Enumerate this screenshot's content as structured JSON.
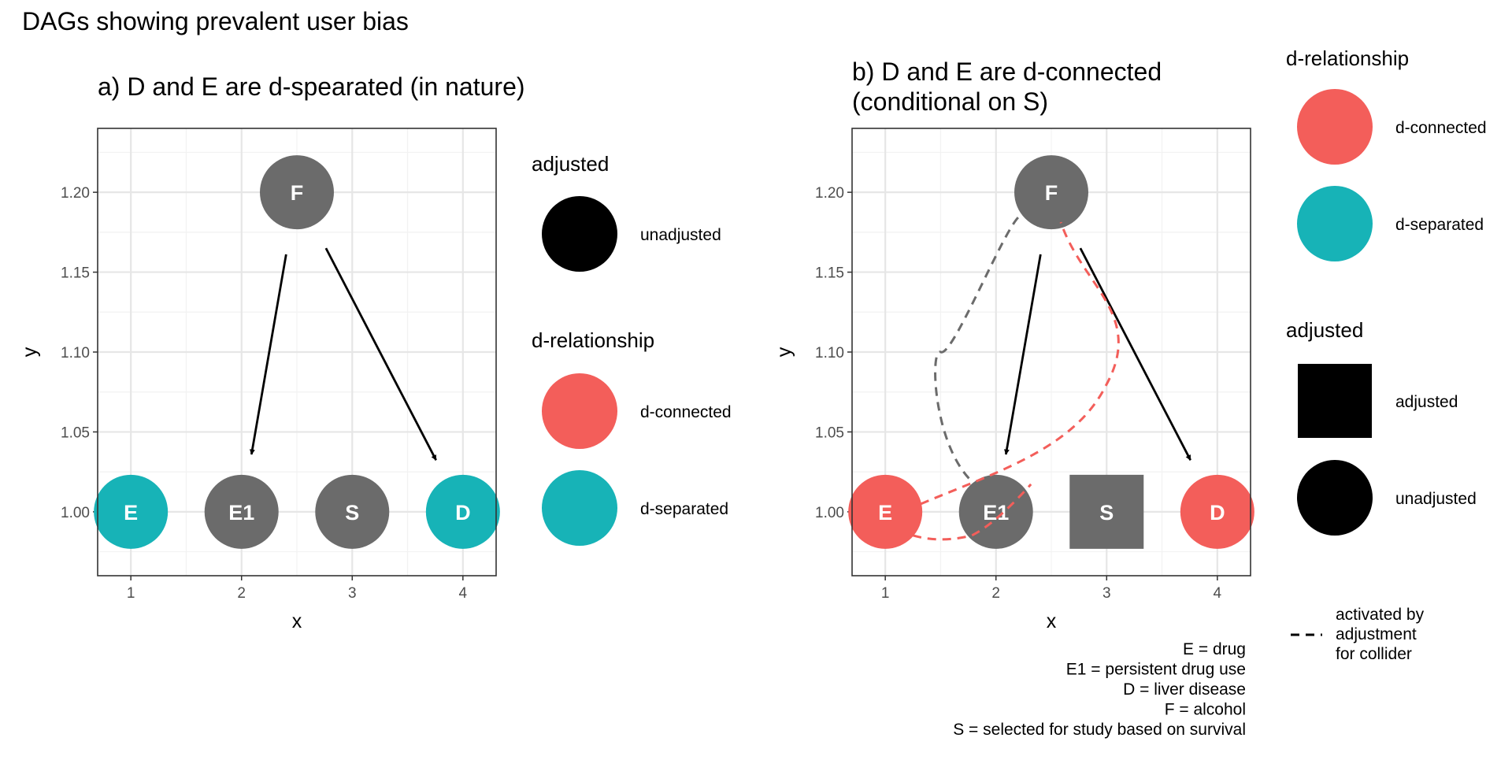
{
  "figure": {
    "title": "DAGs showing prevalent user bias"
  },
  "colors": {
    "connected": "#F35E5A",
    "separated": "#17B3B7",
    "neutral": "#6B6B6B",
    "edge": "#000000",
    "grid_major": "#E6E6E6",
    "grid_minor": "#F2F2F2"
  },
  "chart_data": [
    {
      "type": "dag",
      "title": "a) D and E are d-spearated (in nature)",
      "xlabel": "x",
      "ylabel": "y",
      "xlim": [
        0.7,
        4.3
      ],
      "ylim": [
        0.96,
        1.24
      ],
      "xticks": [
        "1",
        "2",
        "3",
        "4"
      ],
      "yticks": [
        "1.00",
        "1.05",
        "1.10",
        "1.15",
        "1.20"
      ],
      "nodes": [
        {
          "name": "F",
          "x": 2.5,
          "y": 1.2,
          "shape": "circle",
          "status": "neutral"
        },
        {
          "name": "E",
          "x": 1,
          "y": 1.0,
          "shape": "circle",
          "status": "separated"
        },
        {
          "name": "E1",
          "x": 2,
          "y": 1.0,
          "shape": "circle",
          "status": "neutral"
        },
        {
          "name": "S",
          "x": 3,
          "y": 1.0,
          "shape": "circle",
          "status": "neutral"
        },
        {
          "name": "D",
          "x": 4,
          "y": 1.0,
          "shape": "circle",
          "status": "separated"
        }
      ],
      "edges": [
        {
          "from": "F",
          "to": "E1"
        },
        {
          "from": "F",
          "to": "D"
        }
      ],
      "collider_paths": []
    },
    {
      "type": "dag",
      "title": "b) D and E are d-connected\n(conditional on S)",
      "xlabel": "x",
      "ylabel": "y",
      "xlim": [
        0.7,
        4.3
      ],
      "ylim": [
        0.96,
        1.24
      ],
      "xticks": [
        "1",
        "2",
        "3",
        "4"
      ],
      "yticks": [
        "1.00",
        "1.05",
        "1.10",
        "1.15",
        "1.20"
      ],
      "nodes": [
        {
          "name": "F",
          "x": 2.5,
          "y": 1.2,
          "shape": "circle",
          "status": "neutral"
        },
        {
          "name": "E",
          "x": 1,
          "y": 1.0,
          "shape": "circle",
          "status": "connected"
        },
        {
          "name": "E1",
          "x": 2,
          "y": 1.0,
          "shape": "circle",
          "status": "neutral"
        },
        {
          "name": "S",
          "x": 3,
          "y": 1.0,
          "shape": "square",
          "status": "neutral"
        },
        {
          "name": "D",
          "x": 4,
          "y": 1.0,
          "shape": "circle",
          "status": "connected"
        }
      ],
      "edges": [
        {
          "from": "F",
          "to": "E1"
        },
        {
          "from": "F",
          "to": "D"
        }
      ],
      "collider_paths": [
        {
          "from": "E1",
          "to": "F",
          "status": "neutral"
        },
        {
          "from": "E",
          "to": "F",
          "status": "connected"
        }
      ]
    }
  ],
  "legend_a": {
    "adjusted_title": "adjusted",
    "unadjusted_label": "unadjusted",
    "drel_title": "d-relationship",
    "connected_label": "d-connected",
    "separated_label": "d-separated"
  },
  "legend_b": {
    "drel_title": "d-relationship",
    "connected_label": "d-connected",
    "separated_label": "d-separated",
    "adjusted_title": "adjusted",
    "adjusted_label": "adjusted",
    "unadjusted_label": "unadjusted",
    "linetype_label": "activated by\nadjustment\nfor collider"
  },
  "caption": [
    "E = drug",
    "E1 = persistent drug use",
    "D = liver disease",
    "F = alcohol",
    "S = selected for study based on survival"
  ]
}
